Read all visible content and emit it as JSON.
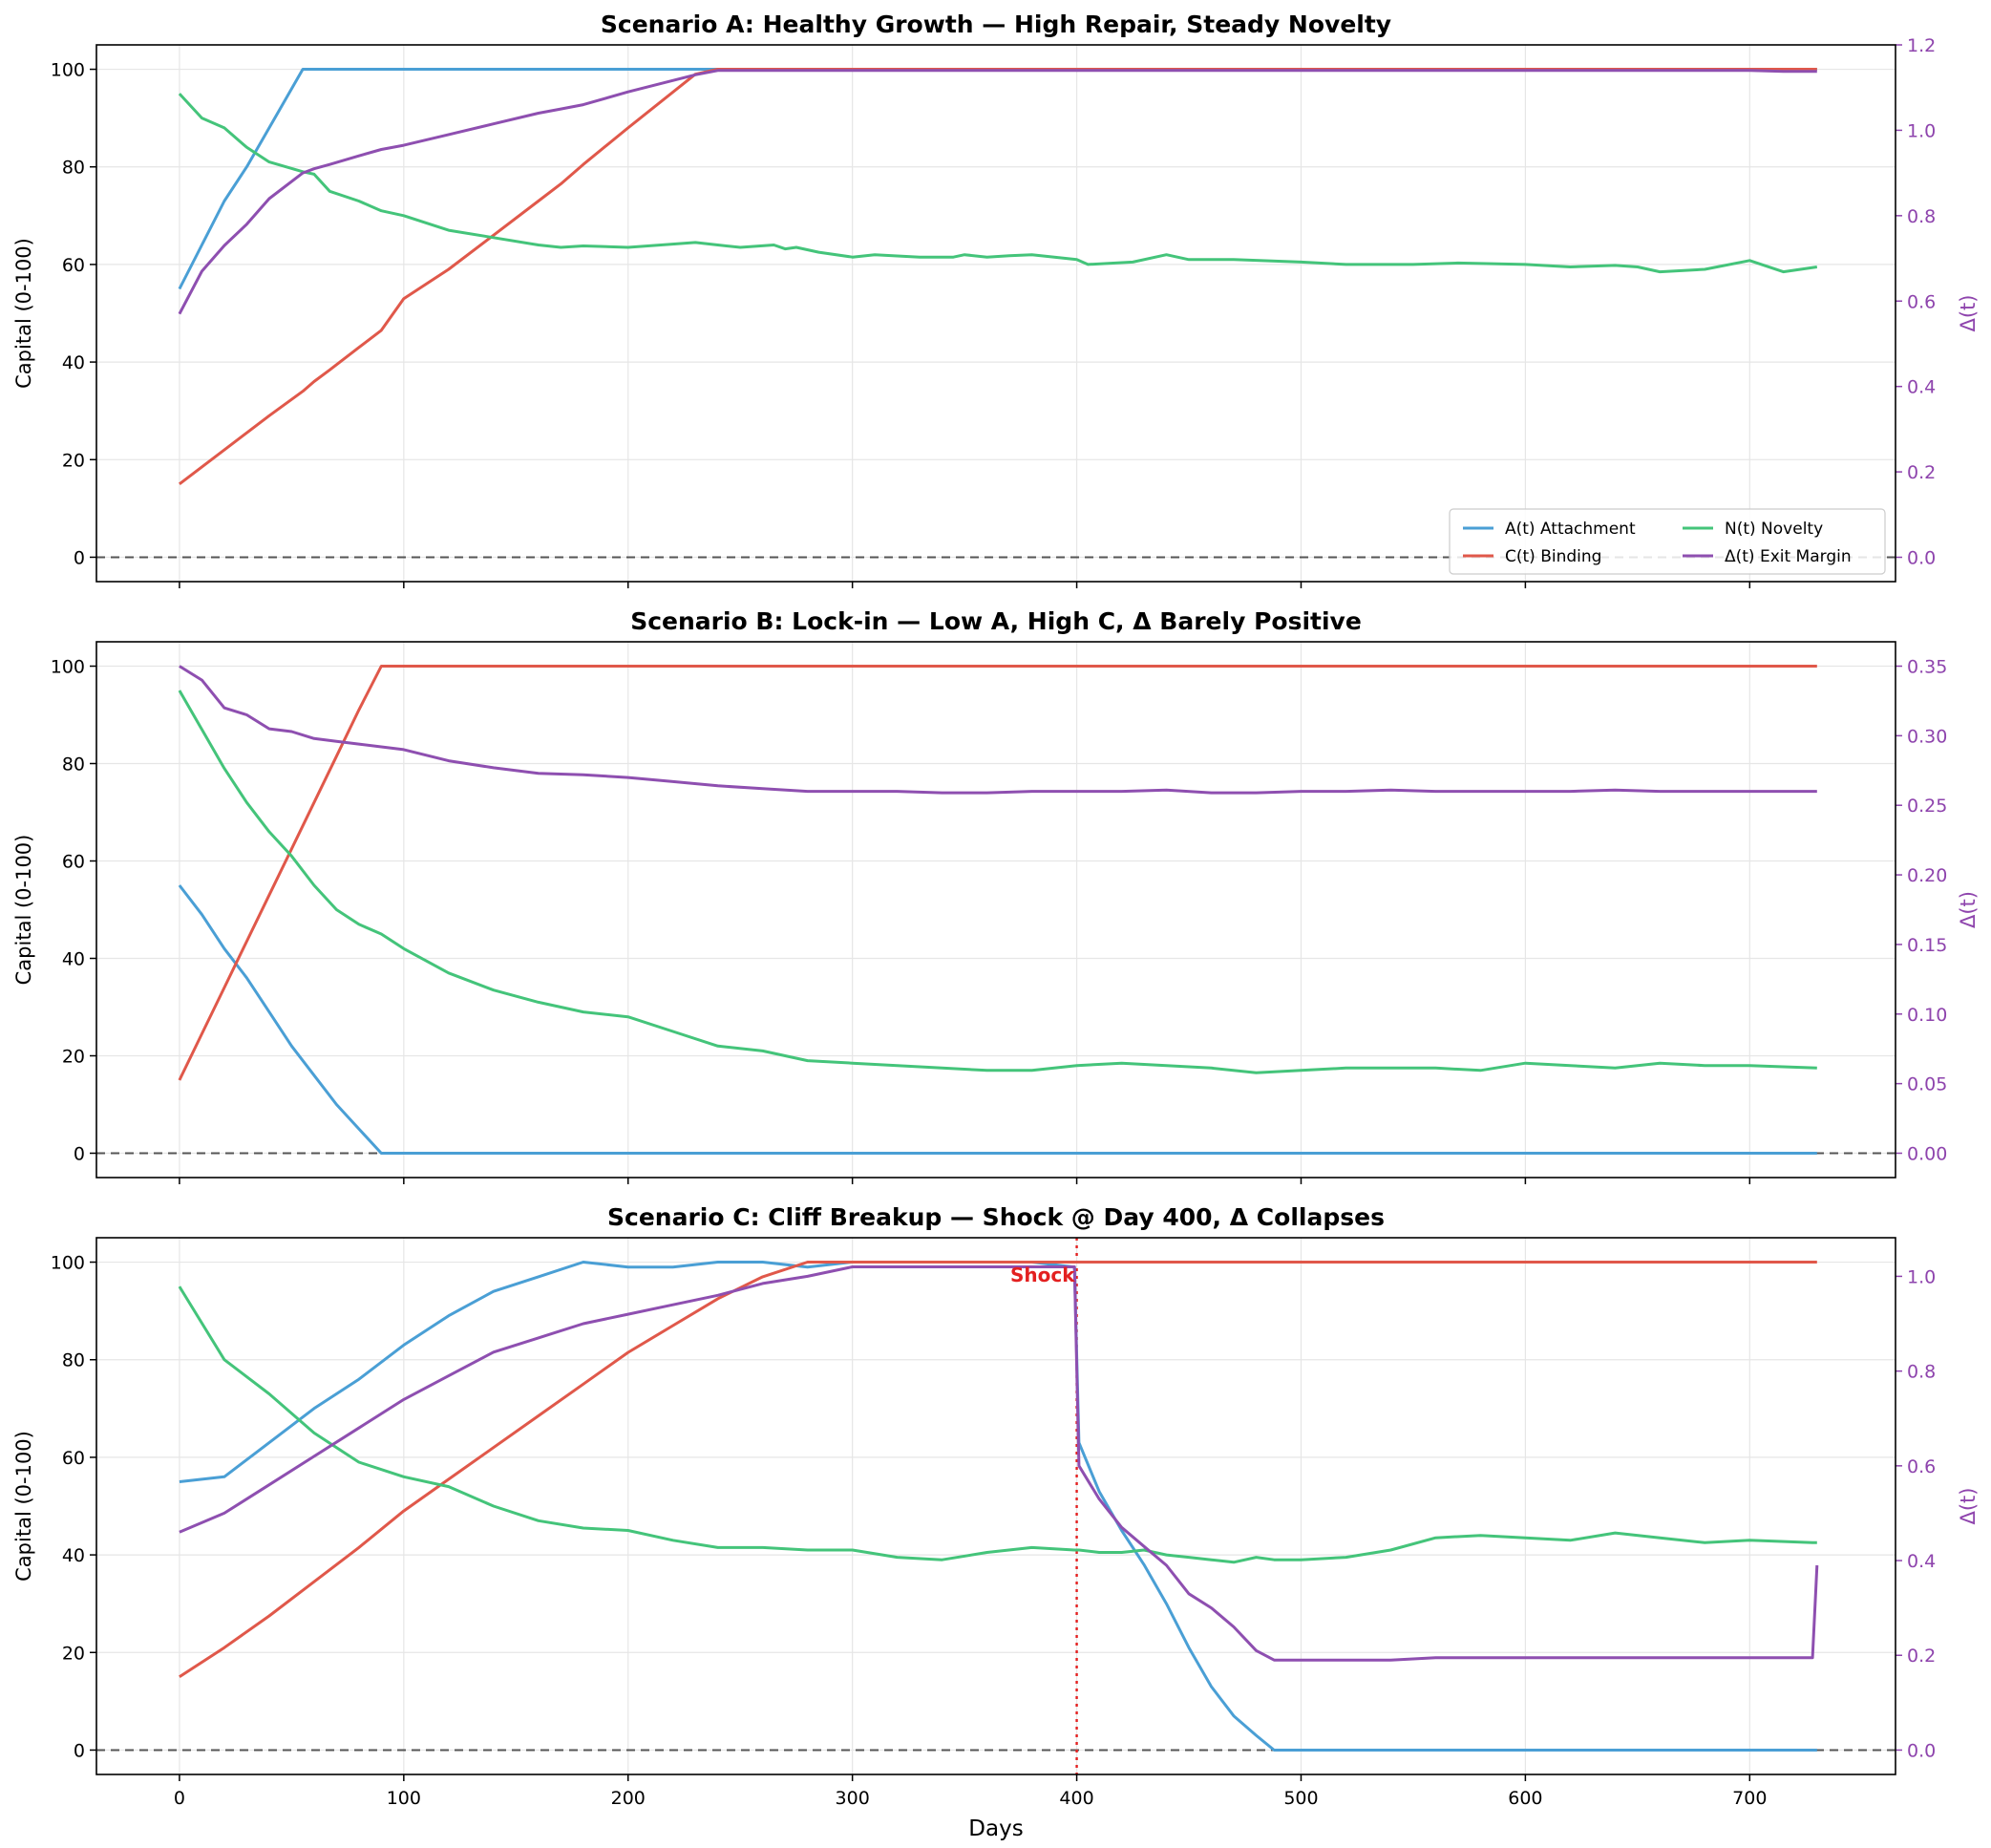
{
  "figure": {
    "xlabel": "Days",
    "ylabel_left": "Capital (0-100)",
    "ylabel_right": "Δ(t)"
  },
  "colors": {
    "A": "#4a9fd5",
    "C": "#e0584a",
    "N": "#44c47a",
    "D": "#8e4fb0",
    "grid": "#e6e6e6",
    "zero": "#555555",
    "shock": "#e32020",
    "right_axis": "#8e44ad"
  },
  "legend": {
    "A": "A(t) Attachment",
    "C": "C(t) Binding",
    "N": "N(t) Novelty",
    "D": "Δ(t) Exit Margin"
  },
  "chart_data": [
    {
      "type": "line",
      "title": "Scenario A: Healthy Growth — High Repair, Steady Novelty",
      "xlim": [
        -37,
        765
      ],
      "ylim": [
        -5,
        105
      ],
      "ylim_right": [
        -0.057,
        1.2
      ],
      "xticks": [
        0,
        100,
        200,
        300,
        400,
        500,
        600,
        700
      ],
      "yticks": [
        0,
        20,
        40,
        60,
        80,
        100
      ],
      "yticks_right": [
        0.0,
        0.2,
        0.4,
        0.6,
        0.8,
        1.0,
        1.2
      ],
      "x": [
        0,
        10,
        20,
        30,
        40,
        55,
        60,
        67,
        80,
        90,
        100,
        120,
        140,
        160,
        170,
        180,
        200,
        230,
        240,
        250,
        265,
        270,
        275,
        285,
        300,
        310,
        330,
        345,
        350,
        360,
        370,
        380,
        400,
        405,
        425,
        440,
        450,
        470,
        500,
        520,
        550,
        570,
        600,
        620,
        640,
        650,
        660,
        680,
        700,
        715,
        730
      ],
      "series": [
        {
          "name": "A(t) Attachment",
          "axis": "left",
          "values": [
            55,
            64,
            73,
            80,
            88,
            100,
            100,
            100,
            100,
            100,
            100,
            100,
            100,
            100,
            100,
            100,
            100,
            100,
            100,
            100,
            100,
            100,
            100,
            100,
            100,
            100,
            100,
            100,
            100,
            100,
            100,
            100,
            100,
            100,
            100,
            100,
            100,
            100,
            100,
            100,
            100,
            100,
            100,
            100,
            100,
            100,
            100,
            100,
            100,
            100,
            100
          ]
        },
        {
          "name": "C(t) Binding",
          "axis": "left",
          "values": [
            15,
            18.5,
            22,
            25.5,
            29,
            34,
            36,
            38.4,
            43,
            46.5,
            53,
            59,
            66,
            73,
            76.5,
            80.5,
            88,
            99,
            100,
            100,
            100,
            100,
            100,
            100,
            100,
            100,
            100,
            100,
            100,
            100,
            100,
            100,
            100,
            100,
            100,
            100,
            100,
            100,
            100,
            100,
            100,
            100,
            100,
            100,
            100,
            100,
            100,
            100,
            100,
            100,
            100
          ]
        },
        {
          "name": "N(t) Novelty",
          "axis": "left",
          "values": [
            95,
            90,
            88,
            84,
            81,
            79,
            78.5,
            75,
            73,
            71,
            70,
            67,
            65.5,
            64,
            63.5,
            63.8,
            63.5,
            64.5,
            64,
            63.5,
            64,
            63.2,
            63.5,
            62.5,
            61.5,
            62,
            61.5,
            61.5,
            62,
            61.5,
            61.8,
            62,
            61,
            60,
            60.5,
            62,
            61,
            61,
            60.5,
            60,
            60,
            60.3,
            60,
            59.5,
            59.8,
            59.5,
            58.5,
            59,
            60.8,
            58.5,
            59.5
          ]
        },
        {
          "name": "Δ(t) Exit Margin",
          "axis": "right",
          "values": [
            0.57,
            0.67,
            0.73,
            0.78,
            0.84,
            0.9,
            0.91,
            0.92,
            0.94,
            0.955,
            0.965,
            0.99,
            1.015,
            1.04,
            1.05,
            1.06,
            1.09,
            1.13,
            1.14,
            1.14,
            1.14,
            1.14,
            1.14,
            1.14,
            1.14,
            1.14,
            1.14,
            1.14,
            1.14,
            1.14,
            1.14,
            1.14,
            1.14,
            1.14,
            1.14,
            1.14,
            1.14,
            1.14,
            1.14,
            1.14,
            1.14,
            1.14,
            1.14,
            1.14,
            1.14,
            1.14,
            1.14,
            1.14,
            1.14,
            1.138,
            1.138
          ]
        }
      ]
    },
    {
      "type": "line",
      "title": "Scenario B: Lock-in — Low A, High C, Δ Barely Positive",
      "xlim": [
        -37,
        765
      ],
      "ylim": [
        -5,
        105
      ],
      "ylim_right": [
        -0.0175,
        0.3675
      ],
      "xticks": [
        0,
        100,
        200,
        300,
        400,
        500,
        600,
        700
      ],
      "yticks": [
        0,
        20,
        40,
        60,
        80,
        100
      ],
      "yticks_right": [
        0.0,
        0.05,
        0.1,
        0.15,
        0.2,
        0.25,
        0.3,
        0.35
      ],
      "x": [
        0,
        10,
        20,
        30,
        40,
        50,
        60,
        70,
        80,
        90,
        100,
        120,
        140,
        160,
        180,
        200,
        220,
        240,
        260,
        280,
        300,
        320,
        340,
        360,
        380,
        400,
        420,
        440,
        460,
        480,
        500,
        520,
        540,
        560,
        580,
        600,
        620,
        640,
        660,
        680,
        700,
        730
      ],
      "series": [
        {
          "name": "A(t) Attachment",
          "axis": "left",
          "values": [
            55,
            49,
            42,
            36,
            29,
            22,
            16,
            10,
            5,
            0,
            0,
            0,
            0,
            0,
            0,
            0,
            0,
            0,
            0,
            0,
            0,
            0,
            0,
            0,
            0,
            0,
            0,
            0,
            0,
            0,
            0,
            0,
            0,
            0,
            0,
            0,
            0,
            0,
            0,
            0,
            0,
            0
          ]
        },
        {
          "name": "C(t) Binding",
          "axis": "left",
          "values": [
            15,
            24.5,
            34,
            43.5,
            53,
            62.5,
            72,
            81.5,
            91,
            100,
            100,
            100,
            100,
            100,
            100,
            100,
            100,
            100,
            100,
            100,
            100,
            100,
            100,
            100,
            100,
            100,
            100,
            100,
            100,
            100,
            100,
            100,
            100,
            100,
            100,
            100,
            100,
            100,
            100,
            100,
            100,
            100
          ]
        },
        {
          "name": "N(t) Novelty",
          "axis": "left",
          "values": [
            95,
            87,
            79,
            72,
            66,
            61,
            55,
            50,
            47,
            45,
            42,
            37,
            33.5,
            31,
            29,
            28,
            25,
            22,
            21,
            19,
            18.5,
            18,
            17.5,
            17,
            17,
            18,
            18.5,
            18,
            17.5,
            16.5,
            17,
            17.5,
            17.5,
            17.5,
            17,
            18.5,
            18,
            17.5,
            18.5,
            18,
            18,
            17.5
          ]
        },
        {
          "name": "Δ(t) Exit Margin",
          "axis": "right",
          "values": [
            0.35,
            0.34,
            0.32,
            0.315,
            0.305,
            0.303,
            0.298,
            0.296,
            0.294,
            0.292,
            0.29,
            0.282,
            0.277,
            0.273,
            0.272,
            0.27,
            0.267,
            0.264,
            0.262,
            0.26,
            0.26,
            0.26,
            0.259,
            0.259,
            0.26,
            0.26,
            0.26,
            0.261,
            0.259,
            0.259,
            0.26,
            0.26,
            0.261,
            0.26,
            0.26,
            0.26,
            0.26,
            0.261,
            0.26,
            0.26,
            0.26,
            0.26
          ]
        }
      ]
    },
    {
      "type": "line",
      "title": "Scenario C: Cliff Breakup — Shock @ Day 400, Δ Collapses",
      "xlim": [
        -37,
        765
      ],
      "ylim": [
        -5,
        105
      ],
      "ylim_right": [
        -0.0515,
        1.0815
      ],
      "xticks": [
        0,
        100,
        200,
        300,
        400,
        500,
        600,
        700
      ],
      "yticks": [
        0,
        20,
        40,
        60,
        80,
        100
      ],
      "yticks_right": [
        0.0,
        0.2,
        0.4,
        0.6,
        0.8,
        1.0
      ],
      "annotation": {
        "text": "Shock",
        "x": 400
      },
      "x": [
        0,
        20,
        40,
        60,
        80,
        100,
        120,
        140,
        160,
        180,
        200,
        220,
        240,
        260,
        280,
        300,
        320,
        340,
        360,
        380,
        399,
        401,
        410,
        420,
        430,
        440,
        450,
        460,
        470,
        480,
        488,
        500,
        520,
        540,
        560,
        580,
        600,
        620,
        640,
        660,
        680,
        700,
        728,
        730
      ],
      "series": [
        {
          "name": "A(t) Attachment",
          "axis": "left",
          "values": [
            55,
            56,
            63,
            70,
            76,
            83,
            89,
            94,
            97,
            100,
            99,
            99,
            100,
            100,
            99,
            100,
            100,
            100,
            100,
            100,
            99,
            63,
            53,
            45,
            38,
            30,
            21,
            13,
            7,
            3,
            0,
            0,
            0,
            0,
            0,
            0,
            0,
            0,
            0,
            0,
            0,
            0,
            0,
            0
          ]
        },
        {
          "name": "C(t) Binding",
          "axis": "left",
          "values": [
            15,
            21,
            27.5,
            34.5,
            41.5,
            49,
            55.5,
            62,
            68.5,
            75,
            81.5,
            87,
            92.5,
            97,
            100,
            100,
            100,
            100,
            100,
            100,
            100,
            100,
            100,
            100,
            100,
            100,
            100,
            100,
            100,
            100,
            100,
            100,
            100,
            100,
            100,
            100,
            100,
            100,
            100,
            100,
            100,
            100,
            100,
            100
          ]
        },
        {
          "name": "N(t) Novelty",
          "axis": "left",
          "values": [
            95,
            80,
            73,
            65,
            59,
            56,
            54,
            50,
            47,
            45.5,
            45,
            43,
            41.5,
            41.5,
            41,
            41,
            39.5,
            39,
            40.5,
            41.5,
            41,
            41,
            40.5,
            40.5,
            41,
            40,
            39.5,
            39,
            38.5,
            39.5,
            39,
            39,
            39.5,
            41,
            43.5,
            44,
            43.5,
            43,
            44.5,
            43.5,
            42.5,
            43,
            42.5,
            42.5
          ]
        },
        {
          "name": "Δ(t) Exit Margin",
          "axis": "right",
          "values": [
            0.46,
            0.5,
            0.56,
            0.62,
            0.68,
            0.74,
            0.79,
            0.84,
            0.87,
            0.9,
            0.92,
            0.94,
            0.96,
            0.985,
            1.0,
            1.02,
            1.02,
            1.02,
            1.02,
            1.02,
            1.02,
            0.6,
            0.53,
            0.47,
            0.43,
            0.39,
            0.33,
            0.3,
            0.26,
            0.21,
            0.19,
            0.19,
            0.19,
            0.19,
            0.195,
            0.195,
            0.195,
            0.195,
            0.195,
            0.195,
            0.195,
            0.195,
            0.195,
            0.39
          ]
        }
      ]
    }
  ]
}
